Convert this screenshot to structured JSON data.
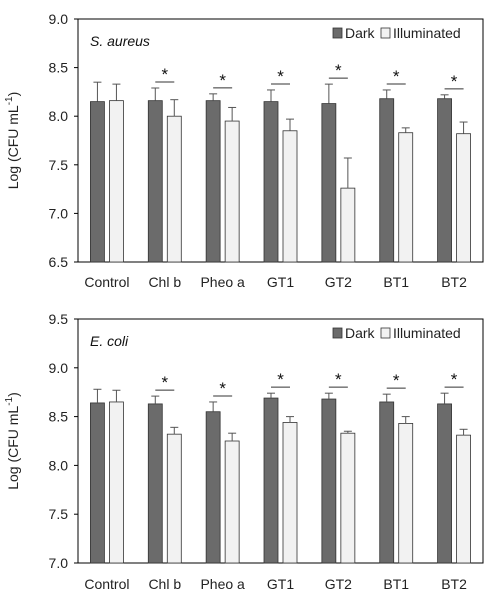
{
  "chart_data": [
    {
      "type": "bar",
      "title": "S. aureus",
      "ylabel": "Log (CFU mL",
      "ylabel_sup": "-1",
      "ylabel_close": ")",
      "ylim": [
        6.5,
        9.0
      ],
      "yticks": [
        "6.5",
        "7.0",
        "7.5",
        "8.0",
        "8.5",
        "9.0"
      ],
      "categories": [
        "Control",
        "Chl b",
        "Pheo a",
        "GT1",
        "GT2",
        "BT1",
        "BT2"
      ],
      "series": [
        {
          "name": "Dark",
          "color": "#6b6b6b",
          "values": [
            8.15,
            8.16,
            8.16,
            8.15,
            8.13,
            8.18,
            8.18
          ],
          "errors": [
            0.2,
            0.13,
            0.07,
            0.12,
            0.2,
            0.09,
            0.04
          ]
        },
        {
          "name": "Illuminated",
          "color": "#f2f2f2",
          "values": [
            8.16,
            8.0,
            7.95,
            7.85,
            7.26,
            7.83,
            7.82
          ],
          "errors": [
            0.17,
            0.17,
            0.14,
            0.12,
            0.31,
            0.05,
            0.12
          ]
        }
      ],
      "significance": [
        "",
        "*",
        "*",
        "*",
        "*",
        "*",
        "*"
      ],
      "legend_position": "top-right",
      "grid": false
    },
    {
      "type": "bar",
      "title": "E. coli",
      "ylabel": "Log (CFU mL",
      "ylabel_sup": "-1",
      "ylabel_close": ")",
      "ylim": [
        7.0,
        9.5
      ],
      "yticks": [
        "7.0",
        "7.5",
        "8.0",
        "8.5",
        "9.0",
        "9.5"
      ],
      "categories": [
        "Control",
        "Chl b",
        "Pheo a",
        "GT1",
        "GT2",
        "BT1",
        "BT2"
      ],
      "series": [
        {
          "name": "Dark",
          "color": "#6b6b6b",
          "values": [
            8.64,
            8.63,
            8.55,
            8.69,
            8.68,
            8.65,
            8.63
          ],
          "errors": [
            0.14,
            0.08,
            0.1,
            0.05,
            0.06,
            0.08,
            0.11
          ]
        },
        {
          "name": "Illuminated",
          "color": "#f2f2f2",
          "values": [
            8.65,
            8.32,
            8.25,
            8.44,
            8.33,
            8.43,
            8.31
          ],
          "errors": [
            0.12,
            0.07,
            0.08,
            0.06,
            0.02,
            0.07,
            0.06
          ]
        }
      ],
      "significance": [
        "",
        "*",
        "*",
        "*",
        "*",
        "*",
        "*"
      ],
      "legend_position": "top-right",
      "grid": false
    }
  ]
}
